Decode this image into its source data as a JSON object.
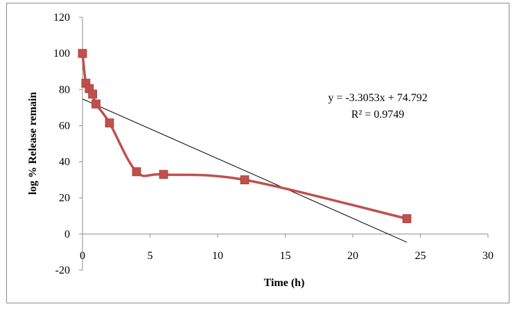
{
  "chart_data": {
    "type": "scatter",
    "xlabel": "Time (h)",
    "ylabel": "log % Release remain",
    "xlim": [
      0,
      30
    ],
    "ylim": [
      -20,
      120
    ],
    "x_ticks": [
      "0",
      "5",
      "10",
      "15",
      "20",
      "25",
      "30"
    ],
    "y_ticks": [
      "-20",
      "0",
      "20",
      "40",
      "60",
      "80",
      "100",
      "120"
    ],
    "grid": false,
    "legend": "none",
    "series": [
      {
        "style": "smoothed line with square markers",
        "color": "#c0504d",
        "points": [
          {
            "x": 0,
            "y": 100
          },
          {
            "x": 0.25,
            "y": 83.5
          },
          {
            "x": 0.5,
            "y": 80.5
          },
          {
            "x": 0.75,
            "y": 77.5
          },
          {
            "x": 1,
            "y": 72
          },
          {
            "x": 2,
            "y": 61.5
          },
          {
            "x": 4,
            "y": 34.5
          },
          {
            "x": 6,
            "y": 33
          },
          {
            "x": 12,
            "y": 30
          },
          {
            "x": 24,
            "y": 8.5
          }
        ]
      }
    ],
    "trendline": {
      "type": "linear",
      "slope": -3.3053,
      "intercept": 74.792,
      "color": "#000000",
      "x_range": [
        0,
        24
      ],
      "equation_label": "y = -3.3053x + 74.792",
      "r2_label": "R² = 0.9749"
    }
  }
}
